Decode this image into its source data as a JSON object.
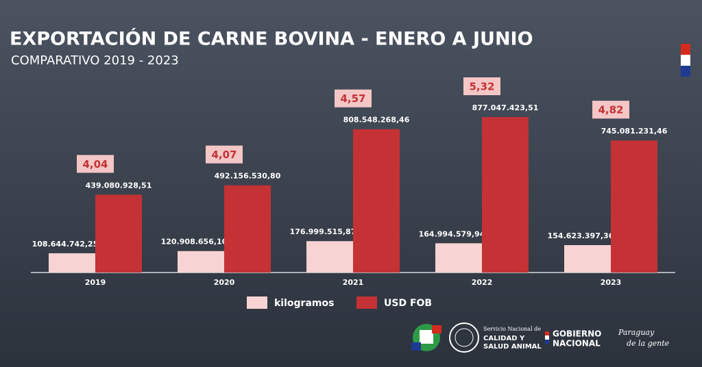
{
  "chart_data": {
    "type": "bar",
    "title": "EXPORTACIÓN DE CARNE BOVINA - ENERO A JUNIO",
    "subtitle": "COMPARATIVO 2019 - 2023",
    "categories": [
      "2019",
      "2020",
      "2021",
      "2022",
      "2023"
    ],
    "series": [
      {
        "name": "kilogramos",
        "color": "#f8d3d3",
        "values": [
          108644742.25,
          120908656.1,
          176999515.87,
          164994579.94,
          154623397.36
        ],
        "value_labels": [
          "108.644.742,25",
          "120.908.656,10",
          "176.999.515,87",
          "164.994.579,94",
          "154.623.397,36"
        ]
      },
      {
        "name": "USD FOB",
        "color": "#c43236",
        "values": [
          439080928.51,
          492156530.8,
          808548268.46,
          877047423.51,
          745081231.46
        ],
        "value_labels": [
          "439.080.928,51",
          "492.156.530,80",
          "808.548.268,46",
          "877.047.423,51",
          "745.081.231,46"
        ]
      }
    ],
    "ratios": {
      "values": [
        4.04,
        4.07,
        4.57,
        5.32,
        4.82
      ],
      "value_labels": [
        "4,04",
        "4,07",
        "4,57",
        "5,32",
        "4,82"
      ]
    },
    "legend": "bottom"
  },
  "footer": {
    "senacsa_line1": "Servicio Nacional de",
    "senacsa_line2": "CALIDAD Y",
    "senacsa_line3": "SALUD ANIMAL",
    "gobierno_line1": "GOBIERNO",
    "gobierno_line2": "NACIONAL",
    "slogan_line1": "Paraguay",
    "slogan_line2": "de la gente"
  }
}
